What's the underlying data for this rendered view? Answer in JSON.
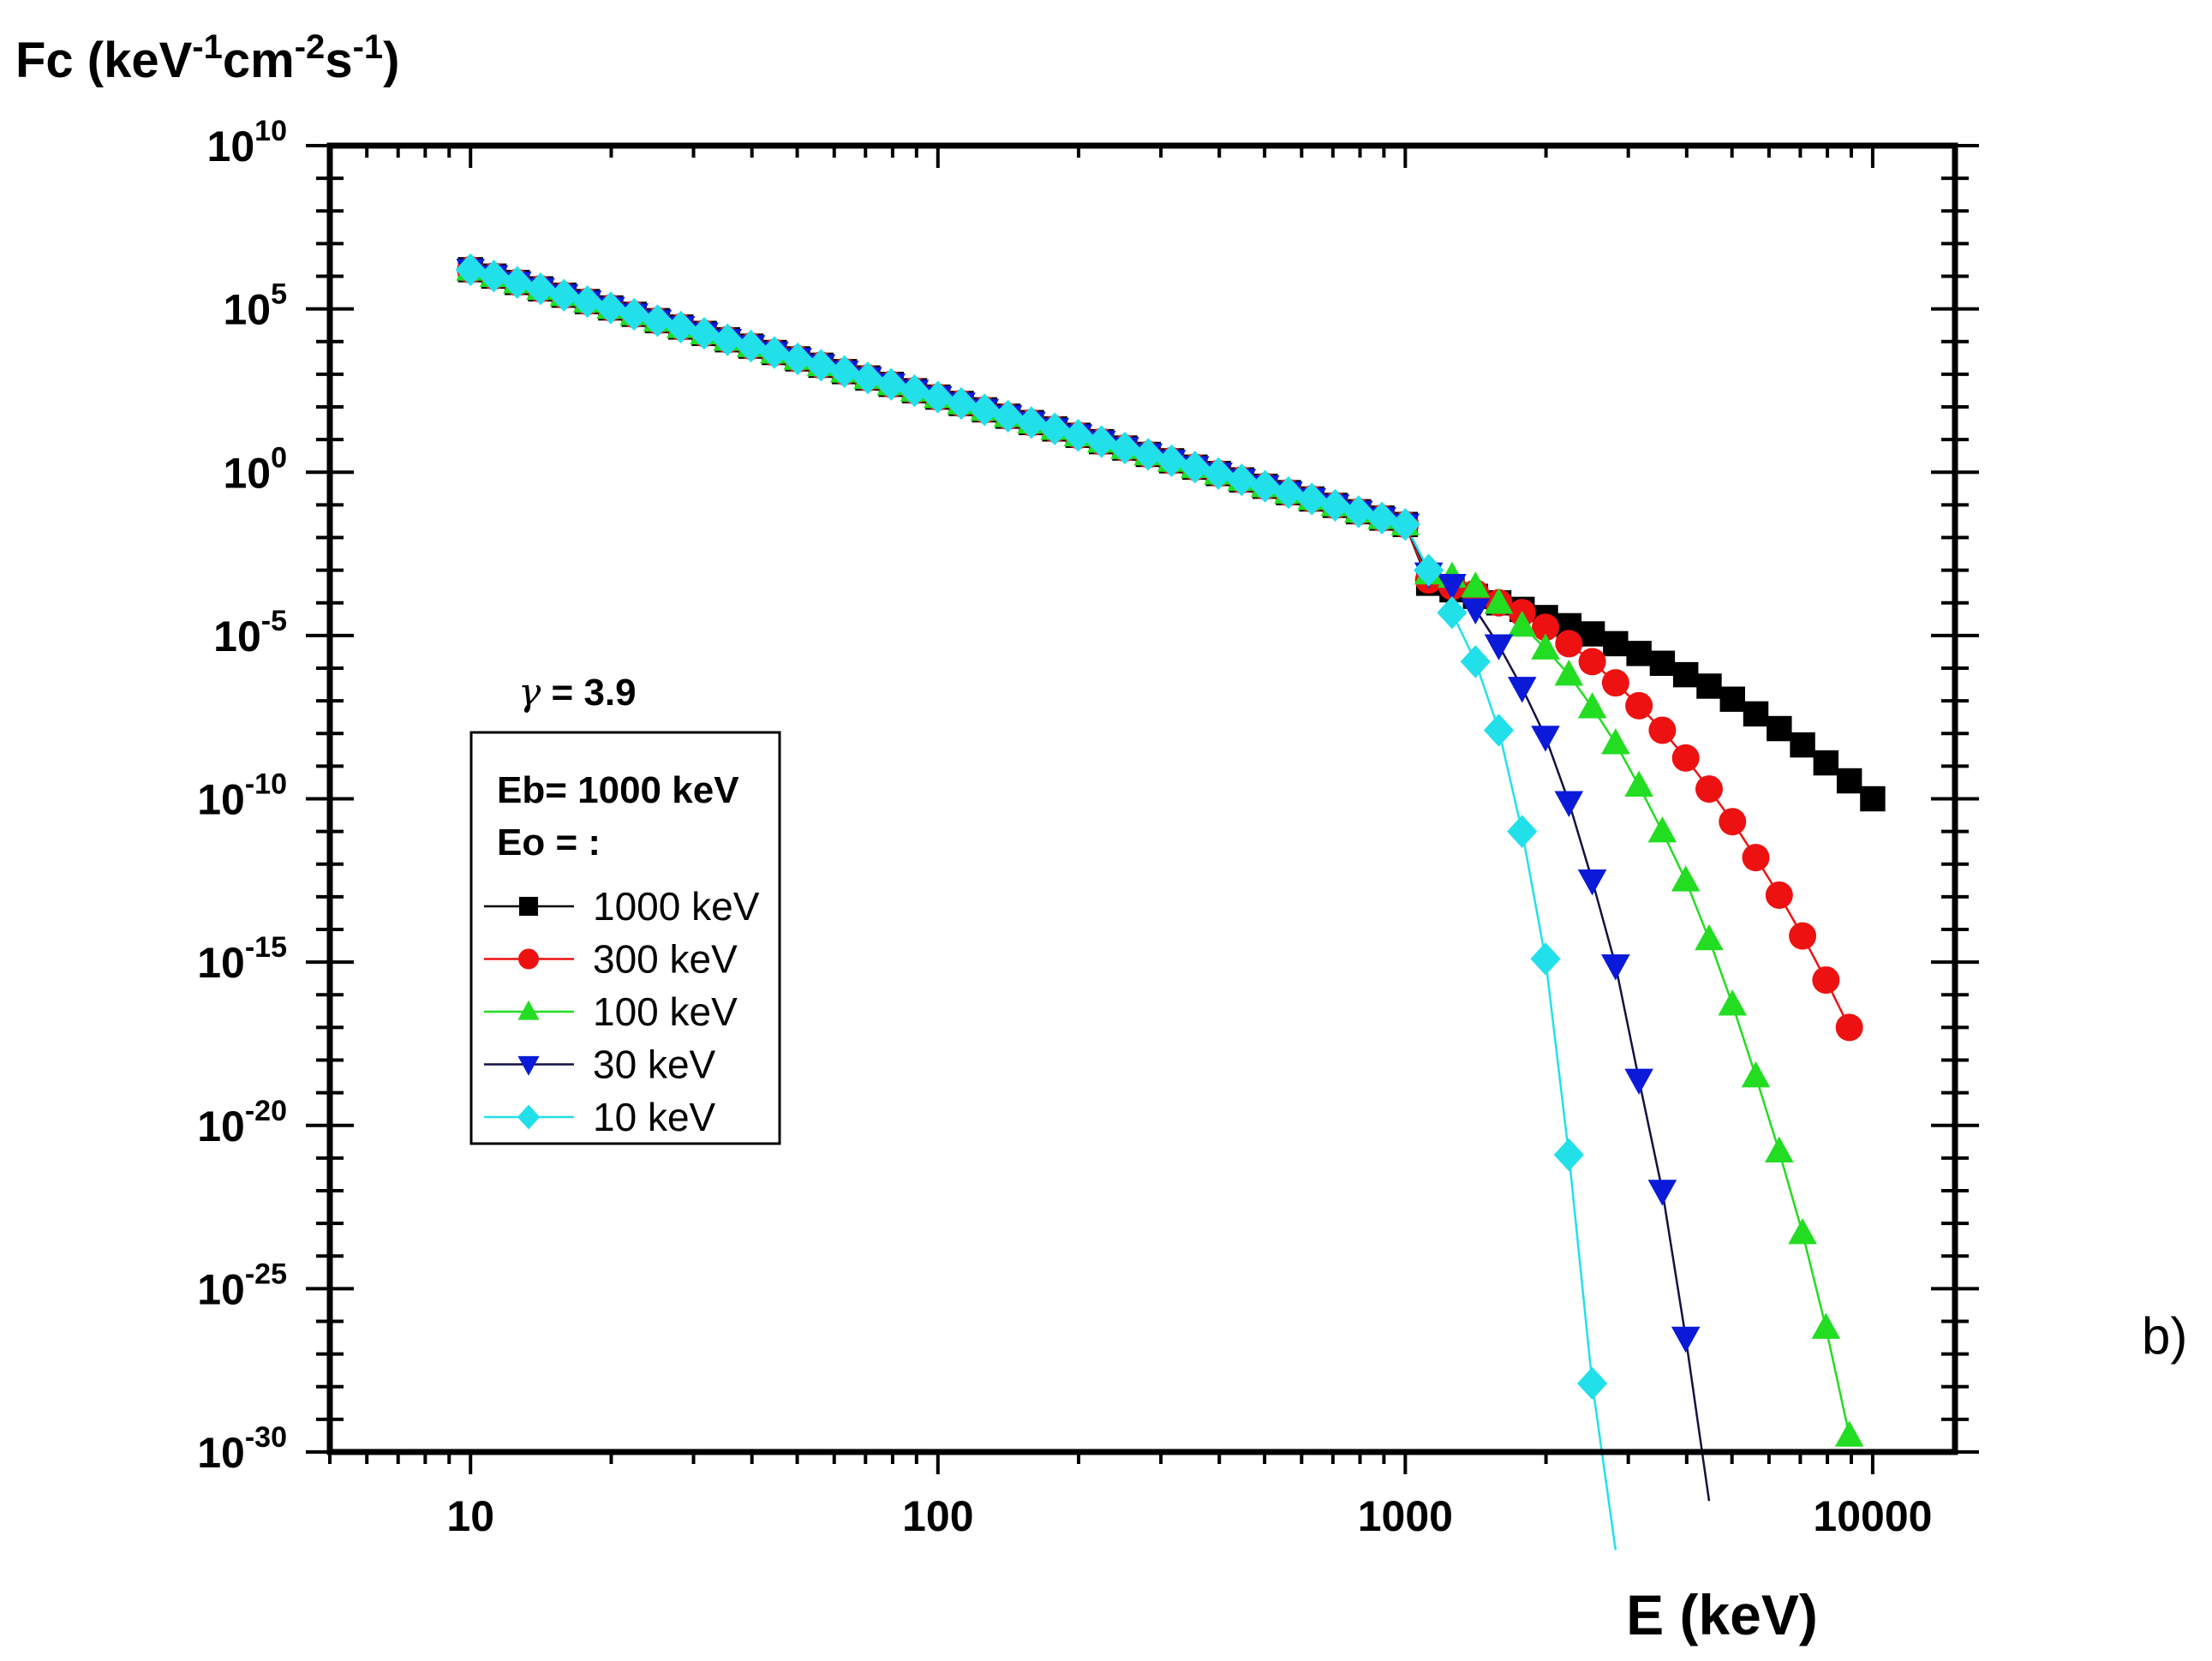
{
  "panel_label": "b)",
  "chart_data": {
    "type": "scatter",
    "title": "",
    "ylabel": {
      "base": "Fc (keV",
      "e1": "-1",
      "mid1": "cm",
      "e2": "-2",
      "mid2": "s",
      "e3": "-1",
      "tail": ")"
    },
    "xlabel": "E (keV)",
    "x_scale": "log",
    "y_scale": "log",
    "xlim": [
      5,
      15000
    ],
    "ylim_exp": [
      -30,
      10
    ],
    "x_ticks": [
      {
        "value": 10,
        "label": "10"
      },
      {
        "value": 100,
        "label": "100"
      },
      {
        "value": 1000,
        "label": "1000"
      },
      {
        "value": 10000,
        "label": "10000"
      }
    ],
    "y_ticks": [
      {
        "exp": 10,
        "base": "10",
        "sup": "10"
      },
      {
        "exp": 5,
        "base": "10",
        "sup": "5"
      },
      {
        "exp": 0,
        "base": "10",
        "sup": "0"
      },
      {
        "exp": -5,
        "base": "10",
        "sup": "-5"
      },
      {
        "exp": -10,
        "base": "10",
        "sup": "-10"
      },
      {
        "exp": -15,
        "base": "10",
        "sup": "-15"
      },
      {
        "exp": -20,
        "base": "10",
        "sup": "-20"
      },
      {
        "exp": -25,
        "base": "10",
        "sup": "-25"
      },
      {
        "exp": -30,
        "base": "10",
        "sup": "-30"
      }
    ],
    "annotation": {
      "symbol": "γ",
      "text": " = 3.9"
    },
    "legend": {
      "title1": "Eb= 1000 keV",
      "title2": "Eo = :",
      "placement": "left-middle",
      "entries": [
        "1000 keV",
        "300 keV",
        "100 keV",
        "30 keV",
        "10 keV"
      ]
    },
    "model": {
      "gamma": 3.9,
      "Eb_keV": 1000,
      "low_energy_log10_at_10keV": 6.2
    },
    "series": [
      {
        "name": "1000 keV",
        "Eo_keV": 1000,
        "marker": "square",
        "color": "#000000",
        "line_color": "#000000",
        "high_energy_points": [
          [
            1122,
            -3.4
          ],
          [
            1259,
            -3.6
          ],
          [
            1413,
            -3.8
          ],
          [
            1585,
            -4.0
          ],
          [
            1778,
            -4.2
          ],
          [
            1995,
            -4.45
          ],
          [
            2239,
            -4.7
          ],
          [
            2512,
            -4.95
          ],
          [
            2818,
            -5.25
          ],
          [
            3162,
            -5.55
          ],
          [
            3548,
            -5.85
          ],
          [
            3981,
            -6.2
          ],
          [
            4467,
            -6.55
          ],
          [
            5012,
            -6.95
          ],
          [
            5623,
            -7.4
          ],
          [
            6310,
            -7.85
          ],
          [
            7079,
            -8.35
          ],
          [
            7943,
            -8.9
          ],
          [
            8913,
            -9.45
          ],
          [
            10000,
            -10.0
          ]
        ]
      },
      {
        "name": "300 keV",
        "Eo_keV": 300,
        "marker": "circle",
        "color": "#ee1111",
        "line_color": "#ee1111",
        "high_energy_points": [
          [
            1122,
            -3.3
          ],
          [
            1259,
            -3.5
          ],
          [
            1413,
            -3.7
          ],
          [
            1585,
            -4.0
          ],
          [
            1778,
            -4.3
          ],
          [
            1995,
            -4.75
          ],
          [
            2239,
            -5.25
          ],
          [
            2512,
            -5.8
          ],
          [
            2818,
            -6.45
          ],
          [
            3162,
            -7.15
          ],
          [
            3548,
            -7.9
          ],
          [
            3981,
            -8.75
          ],
          [
            4467,
            -9.7
          ],
          [
            5012,
            -10.7
          ],
          [
            5623,
            -11.8
          ],
          [
            6310,
            -12.95
          ],
          [
            7079,
            -14.2
          ],
          [
            7943,
            -15.55
          ],
          [
            8913,
            -17.0
          ]
        ]
      },
      {
        "name": "100 keV",
        "Eo_keV": 100,
        "marker": "triangle-up",
        "color": "#22dd22",
        "line_color": "#22dd22",
        "high_energy_points": [
          [
            1122,
            -3.1
          ],
          [
            1259,
            -3.2
          ],
          [
            1413,
            -3.5
          ],
          [
            1585,
            -4.0
          ],
          [
            1778,
            -4.7
          ],
          [
            1995,
            -5.4
          ],
          [
            2239,
            -6.2
          ],
          [
            2512,
            -7.2
          ],
          [
            2818,
            -8.3
          ],
          [
            3162,
            -9.6
          ],
          [
            3548,
            -11.0
          ],
          [
            3981,
            -12.5
          ],
          [
            4467,
            -14.3
          ],
          [
            5012,
            -16.3
          ],
          [
            5623,
            -18.5
          ],
          [
            6310,
            -20.8
          ],
          [
            7079,
            -23.3
          ],
          [
            7943,
            -26.2
          ],
          [
            8913,
            -29.5
          ]
        ]
      },
      {
        "name": "30 keV",
        "Eo_keV": 30,
        "marker": "triangle-down",
        "color": "#0a1ad8",
        "line_color": "#111144",
        "high_energy_points": [
          [
            1122,
            -3.1
          ],
          [
            1259,
            -3.45
          ],
          [
            1413,
            -4.2
          ],
          [
            1585,
            -5.3
          ],
          [
            1778,
            -6.6
          ],
          [
            1995,
            -8.1
          ],
          [
            2239,
            -10.1
          ],
          [
            2512,
            -12.5
          ],
          [
            2818,
            -15.1
          ],
          [
            3162,
            -18.6
          ],
          [
            3548,
            -22.0
          ],
          [
            3981,
            -26.5
          ],
          [
            4467,
            -31.5
          ]
        ]
      },
      {
        "name": "10 keV",
        "Eo_keV": 10,
        "marker": "diamond",
        "color": "#22e0ea",
        "line_color": "#22e0ea",
        "high_energy_points": [
          [
            1122,
            -3.0
          ],
          [
            1259,
            -4.3
          ],
          [
            1413,
            -5.8
          ],
          [
            1585,
            -7.9
          ],
          [
            1778,
            -11.0
          ],
          [
            1995,
            -14.9
          ],
          [
            2239,
            -20.9
          ],
          [
            2512,
            -27.9
          ],
          [
            2818,
            -33.0
          ]
        ]
      }
    ]
  }
}
